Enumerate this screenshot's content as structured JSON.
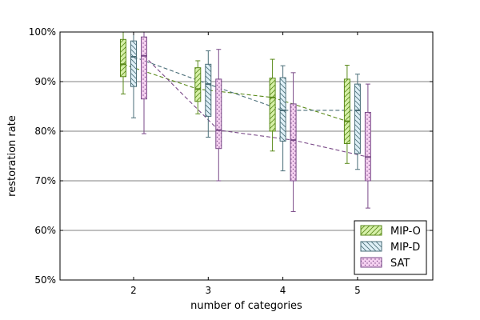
{
  "chart_data": {
    "type": "box",
    "xlabel": "number of categories",
    "ylabel": "restoration rate",
    "categories": [
      "2",
      "3",
      "4",
      "5"
    ],
    "ylim": [
      50,
      100
    ],
    "yticks": [
      "50%",
      "60%",
      "70%",
      "80%",
      "90%",
      "100%"
    ],
    "grid": "horizontal",
    "legend_position": "lower-right",
    "series": [
      {
        "name": "MIP-O",
        "color": "#5a8a1a",
        "fill": "#d6f0a8",
        "hatch": "diagonal",
        "boxes": [
          {
            "min": 87.5,
            "q1": 91.0,
            "median": 93.5,
            "q3": 98.5,
            "max": 100.0
          },
          {
            "min": 83.5,
            "q1": 86.0,
            "median": 88.5,
            "q3": 92.8,
            "max": 94.2
          },
          {
            "min": 76.0,
            "q1": 80.0,
            "median": 86.8,
            "q3": 90.7,
            "max": 94.5
          },
          {
            "min": 73.5,
            "q1": 77.5,
            "median": 82.0,
            "q3": 90.5,
            "max": 93.3
          }
        ]
      },
      {
        "name": "MIP-D",
        "color": "#4a6e78",
        "fill": "#dff0f7",
        "hatch": "backslash",
        "boxes": [
          {
            "min": 82.7,
            "q1": 89.0,
            "median": 95.0,
            "q3": 98.2,
            "max": 100.0
          },
          {
            "min": 78.8,
            "q1": 83.0,
            "median": 89.5,
            "q3": 93.5,
            "max": 96.2
          },
          {
            "min": 72.0,
            "q1": 78.0,
            "median": 84.2,
            "q3": 90.8,
            "max": 93.2
          },
          {
            "min": 72.3,
            "q1": 75.5,
            "median": 84.2,
            "q3": 89.5,
            "max": 91.5
          }
        ]
      },
      {
        "name": "SAT",
        "color": "#7a4a88",
        "fill": "#f5d0f0",
        "hatch": "dots",
        "boxes": [
          {
            "min": 79.5,
            "q1": 86.5,
            "median": 95.2,
            "q3": 99.0,
            "max": 100.0
          },
          {
            "min": 70.0,
            "q1": 76.5,
            "median": 80.2,
            "q3": 90.5,
            "max": 96.5
          },
          {
            "min": 63.8,
            "q1": 70.0,
            "median": 78.2,
            "q3": 85.5,
            "max": 91.8
          },
          {
            "min": 64.5,
            "q1": 70.0,
            "median": 74.8,
            "q3": 83.8,
            "max": 89.5
          }
        ]
      }
    ]
  }
}
